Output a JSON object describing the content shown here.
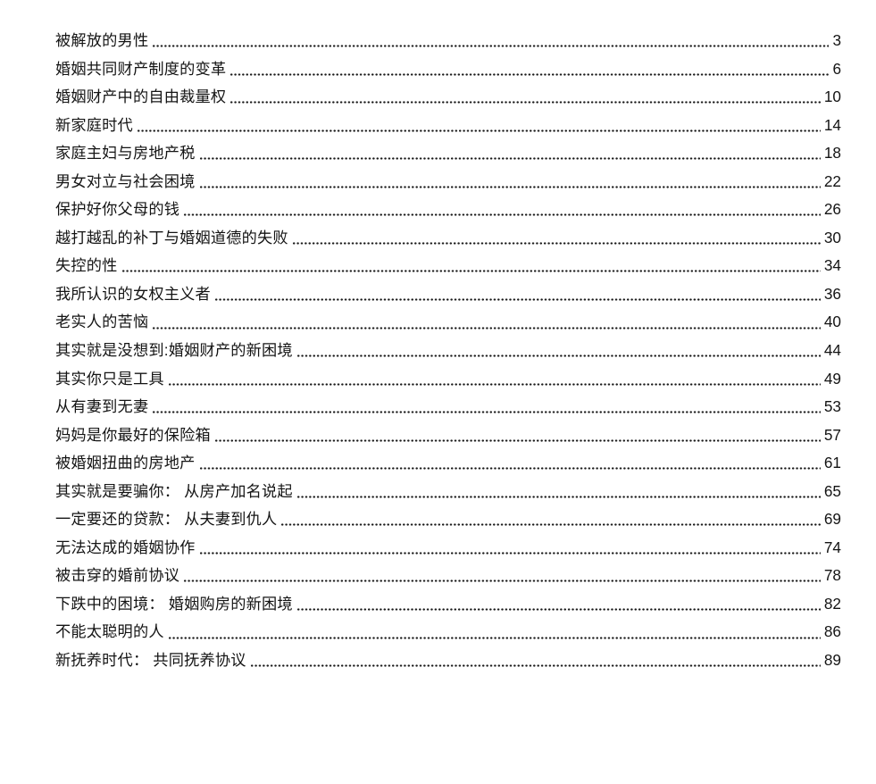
{
  "page": {
    "background": "#ffffff",
    "text_color": "#141414",
    "dot_color": "#1c1c1c"
  },
  "toc": {
    "entries": [
      {
        "title": "被解放的男性",
        "page": "3"
      },
      {
        "title": "婚姻共同财产制度的变革",
        "page": "6"
      },
      {
        "title": "婚姻财产中的自由裁量权",
        "page": "10"
      },
      {
        "title": "新家庭时代",
        "page": "14"
      },
      {
        "title": "家庭主妇与房地产税",
        "page": "18"
      },
      {
        "title": "男女对立与社会困境",
        "page": "22"
      },
      {
        "title": "保护好你父母的钱",
        "page": "26"
      },
      {
        "title": "越打越乱的补丁与婚姻道德的失败",
        "page": "30"
      },
      {
        "title": "失控的性",
        "page": "34"
      },
      {
        "title": "我所认识的女权主义者",
        "page": "36"
      },
      {
        "title": "老实人的苦恼",
        "page": "40"
      },
      {
        "title": "其实就是没想到:婚姻财产的新困境",
        "page": "44"
      },
      {
        "title": "其实你只是工具",
        "page": "49"
      },
      {
        "title": "从有妻到无妻",
        "page": "53"
      },
      {
        "title": "妈妈是你最好的保险箱",
        "page": "57"
      },
      {
        "title": "被婚姻扭曲的房地产",
        "page": "61"
      },
      {
        "title": "其实就是要骗你： 从房产加名说起",
        "page": "65"
      },
      {
        "title": "一定要还的贷款： 从夫妻到仇人",
        "page": "69"
      },
      {
        "title": "无法达成的婚姻协作",
        "page": "74"
      },
      {
        "title": "被击穿的婚前协议",
        "page": "78"
      },
      {
        "title": "下跌中的困境： 婚姻购房的新困境",
        "page": "82"
      },
      {
        "title": "不能太聪明的人",
        "page": "86"
      },
      {
        "title": "新抚养时代： 共同抚养协议",
        "page": "89"
      }
    ]
  }
}
